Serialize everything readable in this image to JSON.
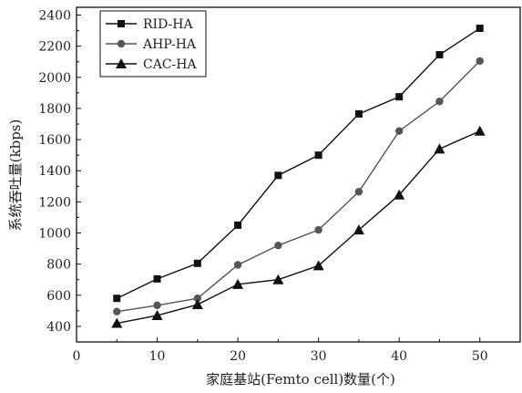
{
  "chart_data": {
    "type": "line",
    "title": "",
    "xlabel": "家庭基站(Femto cell)数量(个)",
    "ylabel": "系统吞吐量(kbps)",
    "xlim": [
      0,
      55
    ],
    "ylim": [
      300,
      2450
    ],
    "x_ticks": [
      0,
      10,
      20,
      30,
      40,
      50
    ],
    "y_ticks": [
      400,
      600,
      800,
      1000,
      1200,
      1400,
      1600,
      1800,
      2000,
      2200,
      2400
    ],
    "x": [
      5,
      10,
      15,
      20,
      25,
      30,
      35,
      40,
      45,
      50
    ],
    "grid": false,
    "legend_position": "top-left",
    "series": [
      {
        "name": "RID-HA",
        "marker": "square",
        "color": "#111111",
        "values": [
          580,
          705,
          805,
          1050,
          1370,
          1500,
          1765,
          1875,
          2145,
          2315
        ]
      },
      {
        "name": "AHP-HA",
        "marker": "circle",
        "color": "#555555",
        "values": [
          495,
          535,
          580,
          795,
          920,
          1020,
          1265,
          1655,
          1845,
          2105
        ]
      },
      {
        "name": "CAC-HA",
        "marker": "triangle",
        "color": "#111111",
        "values": [
          420,
          470,
          540,
          670,
          700,
          790,
          1020,
          1245,
          1540,
          1655
        ]
      }
    ]
  }
}
